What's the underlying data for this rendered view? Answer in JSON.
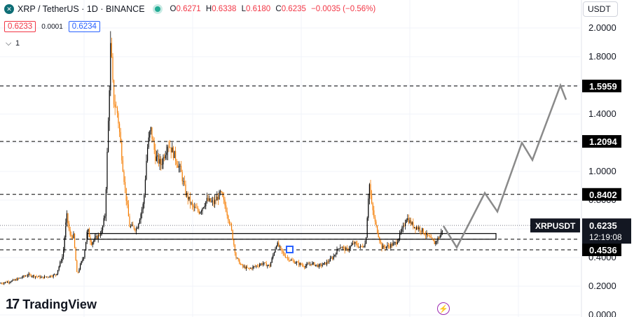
{
  "header": {
    "symbol": "XRP / TetherUS · 1D · BINANCE",
    "open_label": "O",
    "open": "0.6271",
    "high_label": "H",
    "high": "0.6338",
    "low_label": "L",
    "low": "0.6180",
    "close_label": "C",
    "close": "0.6235",
    "change": "−0.0035 (−0.56%)"
  },
  "quote": {
    "bid": "0.6233",
    "spread": "0.0001",
    "ask": "0.6234"
  },
  "indicators": {
    "count": "1"
  },
  "currency_button": "USDT",
  "branding": "TradingView",
  "colors": {
    "up": "#000000",
    "down": "#f57c00",
    "grid": "#f0f3fa",
    "accent": "#2962ff"
  },
  "chart_data": {
    "type": "candlestick",
    "symbol": "XRPUSDT",
    "ylim": [
      0.0,
      2.1
    ],
    "y_ticks": [
      "0.0000",
      "0.2000",
      "0.4000",
      "0.6000",
      "0.8000",
      "1.0000",
      "1.2000",
      "1.4000",
      "1.6000",
      "1.8000",
      "2.0000"
    ],
    "y_tick_values": [
      0.0,
      0.2,
      0.4,
      0.6,
      0.8,
      1.0,
      1.2,
      1.4,
      1.6,
      1.8,
      2.0
    ],
    "price_series": [
      [
        0,
        0.22
      ],
      [
        20,
        0.24
      ],
      [
        40,
        0.28
      ],
      [
        60,
        0.26
      ],
      [
        80,
        0.28
      ],
      [
        90,
        0.42
      ],
      [
        95,
        0.7
      ],
      [
        100,
        0.55
      ],
      [
        105,
        0.55
      ],
      [
        110,
        0.28
      ],
      [
        120,
        0.42
      ],
      [
        125,
        0.6
      ],
      [
        130,
        0.5
      ],
      [
        140,
        0.55
      ],
      [
        145,
        0.58
      ],
      [
        150,
        0.7
      ],
      [
        155,
        1.4
      ],
      [
        158,
        1.9
      ],
      [
        162,
        1.5
      ],
      [
        168,
        1.4
      ],
      [
        172,
        1.2
      ],
      [
        178,
        0.9
      ],
      [
        185,
        0.62
      ],
      [
        195,
        0.6
      ],
      [
        205,
        0.78
      ],
      [
        210,
        1.15
      ],
      [
        215,
        1.3
      ],
      [
        222,
        1.1
      ],
      [
        230,
        1.05
      ],
      [
        240,
        1.2
      ],
      [
        250,
        1.1
      ],
      [
        258,
        1.0
      ],
      [
        265,
        0.85
      ],
      [
        275,
        0.75
      ],
      [
        285,
        0.72
      ],
      [
        295,
        0.8
      ],
      [
        305,
        0.78
      ],
      [
        315,
        0.85
      ],
      [
        322,
        0.75
      ],
      [
        330,
        0.6
      ],
      [
        337,
        0.4
      ],
      [
        345,
        0.34
      ],
      [
        355,
        0.32
      ],
      [
        365,
        0.34
      ],
      [
        375,
        0.36
      ],
      [
        385,
        0.34
      ],
      [
        395,
        0.5
      ],
      [
        405,
        0.42
      ],
      [
        415,
        0.38
      ],
      [
        425,
        0.36
      ],
      [
        435,
        0.34
      ],
      [
        445,
        0.36
      ],
      [
        455,
        0.34
      ],
      [
        465,
        0.36
      ],
      [
        475,
        0.4
      ],
      [
        485,
        0.48
      ],
      [
        495,
        0.45
      ],
      [
        505,
        0.5
      ],
      [
        515,
        0.47
      ],
      [
        522,
        0.5
      ],
      [
        527,
        0.93
      ],
      [
        530,
        0.78
      ],
      [
        535,
        0.65
      ],
      [
        545,
        0.47
      ],
      [
        555,
        0.48
      ],
      [
        565,
        0.5
      ],
      [
        575,
        0.6
      ],
      [
        580,
        0.68
      ],
      [
        590,
        0.62
      ],
      [
        600,
        0.6
      ],
      [
        610,
        0.55
      ],
      [
        620,
        0.5
      ],
      [
        628,
        0.55
      ],
      [
        633,
        0.62
      ]
    ],
    "price_series_x_unit": "bar index (daily)",
    "levels": [
      {
        "label": "1.5959",
        "value": 1.5959
      },
      {
        "label": "1.2094",
        "value": 1.2094
      },
      {
        "label": "0.8402",
        "value": 0.8402
      },
      {
        "label": "0.5274",
        "value": 0.5274
      },
      {
        "label": "0.4536",
        "value": 0.4536
      }
    ],
    "support_zone": {
      "from": 0.5274,
      "to": 0.5674
    },
    "current_price": {
      "symbol": "XRPUSDT",
      "value": "0.6235",
      "countdown": "12:19:08"
    },
    "projection": [
      [
        633,
        0.62
      ],
      [
        652,
        0.47
      ],
      [
        692,
        0.85
      ],
      [
        710,
        0.72
      ],
      [
        745,
        1.2
      ],
      [
        760,
        1.08
      ],
      [
        800,
        1.6
      ],
      [
        808,
        1.5
      ]
    ]
  }
}
